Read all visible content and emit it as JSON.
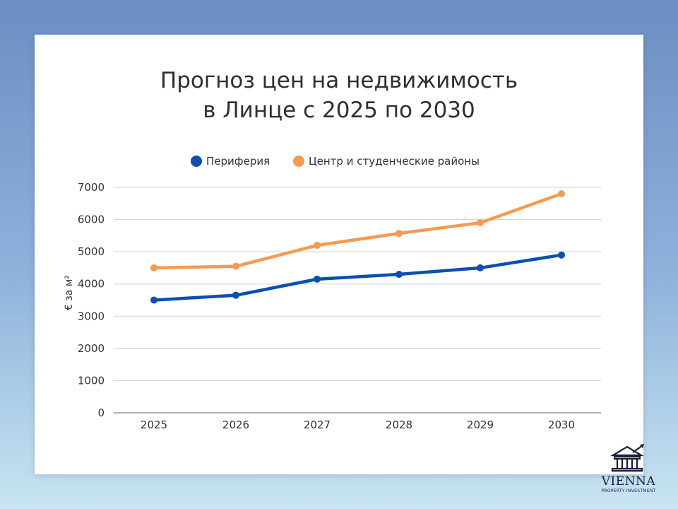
{
  "chart_data": {
    "type": "line",
    "title_lines": [
      "Прогноз цен на недвижимость",
      "в Линце с 2025 по 2030"
    ],
    "ylabel": "€ за м²",
    "xlabel": "",
    "ylim": [
      0,
      7000
    ],
    "yticks": [
      0,
      1000,
      2000,
      3000,
      4000,
      5000,
      6000,
      7000
    ],
    "categories": [
      "2025",
      "2026",
      "2027",
      "2028",
      "2029",
      "2030"
    ],
    "grid": true,
    "legend_position": "top-center",
    "series": [
      {
        "name": "Периферия",
        "color": "#0b4fb0",
        "values": [
          3500,
          3650,
          4150,
          4300,
          4500,
          4900
        ]
      },
      {
        "name": "Центр и студенческие районы",
        "color": "#f79a52",
        "values": [
          4500,
          4550,
          5200,
          5570,
          5900,
          6800
        ]
      }
    ]
  },
  "logo": {
    "name": "VIENNA",
    "tagline": "PROPERTY INVESTMENT",
    "icon": "bank-building-icon"
  }
}
